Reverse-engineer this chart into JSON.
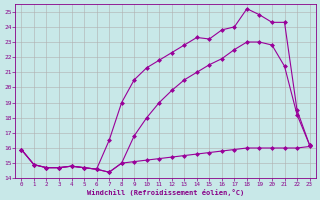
{
  "background_color": "#c8e8e8",
  "grid_color": "#b0b0b0",
  "line_color": "#990099",
  "xlabel": "Windchill (Refroidissement éolien,°C)",
  "tick_color": "#880088",
  "xlim": [
    -0.5,
    23.5
  ],
  "ylim": [
    14,
    25.5
  ],
  "yticks": [
    14,
    15,
    16,
    17,
    18,
    19,
    20,
    21,
    22,
    23,
    24,
    25
  ],
  "xticks": [
    0,
    1,
    2,
    3,
    4,
    5,
    6,
    7,
    8,
    9,
    10,
    11,
    12,
    13,
    14,
    15,
    16,
    17,
    18,
    19,
    20,
    21,
    22,
    23
  ],
  "line1_x": [
    0,
    1,
    2,
    3,
    4,
    5,
    6,
    7,
    8,
    9,
    10,
    11,
    12,
    13,
    14,
    15,
    16,
    17,
    18,
    19,
    20,
    21,
    22,
    23
  ],
  "line1_y": [
    15.9,
    14.9,
    14.7,
    14.7,
    14.8,
    14.7,
    14.6,
    14.4,
    15.0,
    15.1,
    15.2,
    15.3,
    15.4,
    15.5,
    15.6,
    15.7,
    15.8,
    15.9,
    16.0,
    16.0,
    16.0,
    16.0,
    16.0,
    16.1
  ],
  "line2_x": [
    0,
    1,
    2,
    3,
    4,
    5,
    6,
    7,
    8,
    9,
    10,
    11,
    12,
    13,
    14,
    15,
    16,
    17,
    18,
    19,
    20,
    21,
    22,
    23
  ],
  "line2_y": [
    15.9,
    14.9,
    14.7,
    14.7,
    14.8,
    14.7,
    14.6,
    14.4,
    15.0,
    16.8,
    18.0,
    19.0,
    19.8,
    20.5,
    21.0,
    21.5,
    21.9,
    22.5,
    23.0,
    23.0,
    22.8,
    21.4,
    18.2,
    16.2
  ],
  "line3_x": [
    0,
    1,
    2,
    3,
    4,
    5,
    6,
    7,
    8,
    9,
    10,
    11,
    12,
    13,
    14,
    15,
    16,
    17,
    18,
    19,
    20,
    21,
    22,
    23
  ],
  "line3_y": [
    15.9,
    14.9,
    14.7,
    14.7,
    14.8,
    14.7,
    14.6,
    16.5,
    19.0,
    20.5,
    21.3,
    21.8,
    22.3,
    22.8,
    23.3,
    23.2,
    23.8,
    24.0,
    25.2,
    24.8,
    24.3,
    24.3,
    18.5,
    16.2
  ]
}
